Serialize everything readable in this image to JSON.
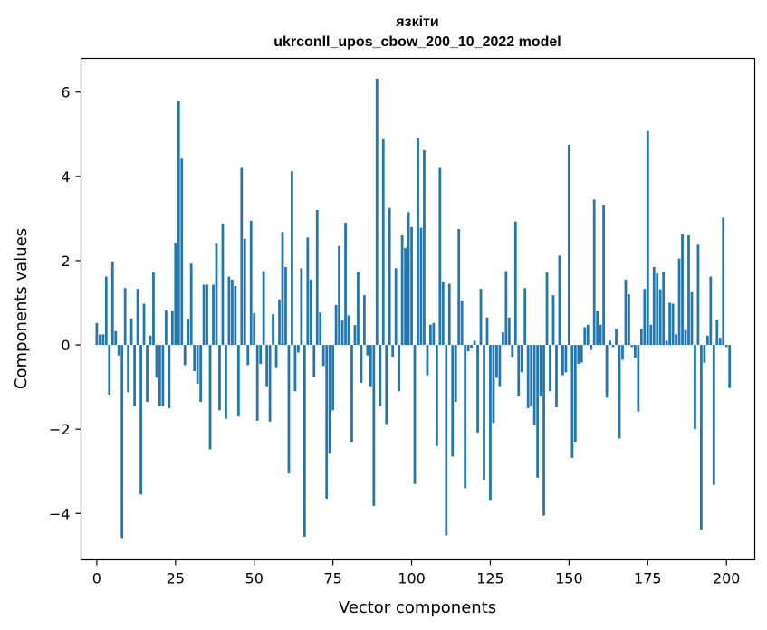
{
  "chart_data": {
    "type": "bar",
    "title_line1": "язкіти",
    "title_line2": "ukrconll_upos_cbow_200_10_2022 model",
    "xlabel": "Vector components",
    "ylabel": "Components values",
    "xlim": [
      -5,
      209
    ],
    "ylim": [
      -5.1,
      6.8
    ],
    "xticks": [
      0,
      25,
      50,
      75,
      100,
      125,
      150,
      175,
      200
    ],
    "yticks": [
      -4,
      -2,
      0,
      2,
      4,
      6
    ],
    "ytick_labels": [
      "−4",
      "−2",
      "0",
      "2",
      "4",
      "6"
    ],
    "bar_color": "#1f77b4",
    "grid": false,
    "values": [
      0.52,
      0.25,
      0.25,
      1.62,
      -1.18,
      1.98,
      0.33,
      -0.25,
      -4.58,
      1.35,
      -1.12,
      0.63,
      -1.45,
      1.33,
      -3.55,
      0.98,
      -1.35,
      0.22,
      1.72,
      -0.78,
      -1.45,
      -1.45,
      0.82,
      -1.5,
      0.8,
      2.42,
      5.78,
      4.42,
      -0.48,
      0.62,
      1.93,
      -0.62,
      -0.92,
      -1.35,
      1.43,
      1.43,
      -2.48,
      1.43,
      2.4,
      -1.55,
      2.88,
      -1.75,
      1.62,
      1.55,
      1.4,
      -1.7,
      4.2,
      2.52,
      -0.48,
      2.95,
      0.75,
      -1.8,
      -0.45,
      1.75,
      -0.98,
      -1.82,
      0.73,
      -0.55,
      1.08,
      2.68,
      1.85,
      -3.05,
      4.12,
      -1.1,
      -0.18,
      1.82,
      -4.55,
      2.55,
      1.55,
      -0.75,
      3.2,
      0.77,
      -0.5,
      -3.65,
      -2.58,
      -1.55,
      0.95,
      2.35,
      0.58,
      2.9,
      0.7,
      -2.3,
      0.47,
      1.73,
      -0.9,
      1.18,
      -0.25,
      -0.98,
      -3.82,
      6.32,
      -1.45,
      4.88,
      -1.88,
      3.25,
      -0.28,
      1.82,
      -1.1,
      2.6,
      2.3,
      3.15,
      2.8,
      -3.3,
      4.9,
      2.78,
      4.62,
      -0.72,
      0.48,
      0.52,
      -2.4,
      4.2,
      1.5,
      -4.52,
      1.45,
      -2.65,
      -1.35,
      2.75,
      1.05,
      -3.4,
      -0.15,
      -0.08,
      0.1,
      -2.08,
      1.33,
      -3.2,
      0.65,
      -3.68,
      -1.85,
      -0.78,
      -0.98,
      0.3,
      1.75,
      0.65,
      -0.28,
      2.93,
      -1.22,
      -0.65,
      1.35,
      -1.5,
      -1.45,
      -1.9,
      -3.15,
      -1.22,
      -4.05,
      1.72,
      -1.1,
      1.18,
      -1.48,
      2.12,
      -0.72,
      -0.65,
      4.75,
      -2.68,
      -2.3,
      -0.45,
      -0.42,
      0.42,
      0.48,
      -0.12,
      3.45,
      0.8,
      0.48,
      3.32,
      -1.25,
      0.1,
      -0.05,
      0.38,
      -2.22,
      -0.35,
      1.55,
      1.2,
      -0.05,
      -0.3,
      -1.58,
      0.38,
      1.33,
      5.08,
      0.48,
      1.85,
      1.7,
      1.32,
      1.73,
      0.1,
      1.0,
      0.98,
      0.25,
      2.05,
      2.63,
      0.35,
      2.6,
      1.25,
      -2.0,
      2.38,
      -4.38,
      -0.42,
      0.22,
      1.62,
      -3.32,
      0.6,
      0.17,
      3.02,
      -0.05,
      -1.02
    ]
  }
}
